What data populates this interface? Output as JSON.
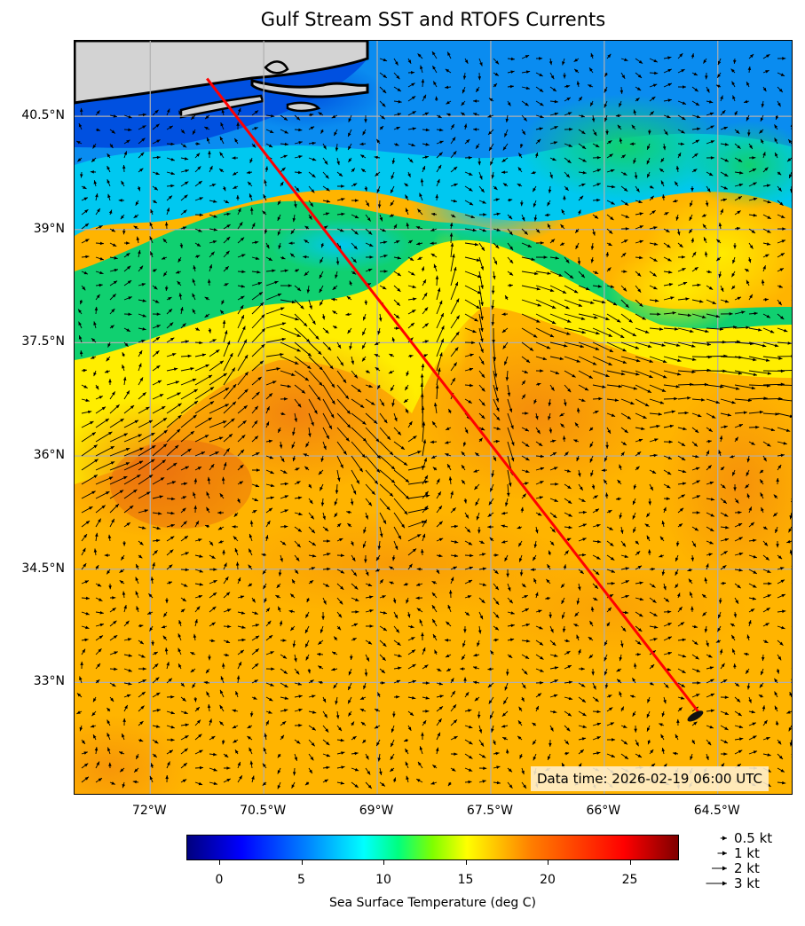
{
  "title": "Gulf Stream SST and RTOFS Currents",
  "map": {
    "projection": "lat-lon",
    "lon_range": [
      -73.0,
      -63.5
    ],
    "lat_range": [
      31.5,
      41.5
    ],
    "lat_ticks": [
      "40.5°N",
      "39°N",
      "37.5°N",
      "36°N",
      "34.5°N",
      "33°N"
    ],
    "lon_ticks": [
      "72°W",
      "70.5°W",
      "69°W",
      "67.5°W",
      "66°W",
      "64.5°W"
    ],
    "gridlines": true,
    "land_color": "#d3d3d3",
    "route": {
      "color": "#ff0000",
      "start": {
        "lon": -71.25,
        "lat": 41.0
      },
      "end": {
        "lon": -64.75,
        "lat": 32.6
      }
    },
    "data_time": "Data time: 2026-02-19 06:00 UTC"
  },
  "colorbar": {
    "label": "Sea Surface Temperature (deg C)",
    "range": [
      -2,
      28
    ],
    "ticks": [
      "0",
      "5",
      "10",
      "15",
      "20",
      "25"
    ],
    "colormap": "jet"
  },
  "legend": {
    "items": [
      {
        "label": "0.5 kt",
        "speed_kt": 0.5
      },
      {
        "label": "1 kt",
        "speed_kt": 1
      },
      {
        "label": "2 kt",
        "speed_kt": 2
      },
      {
        "label": "3 kt",
        "speed_kt": 3
      }
    ]
  }
}
